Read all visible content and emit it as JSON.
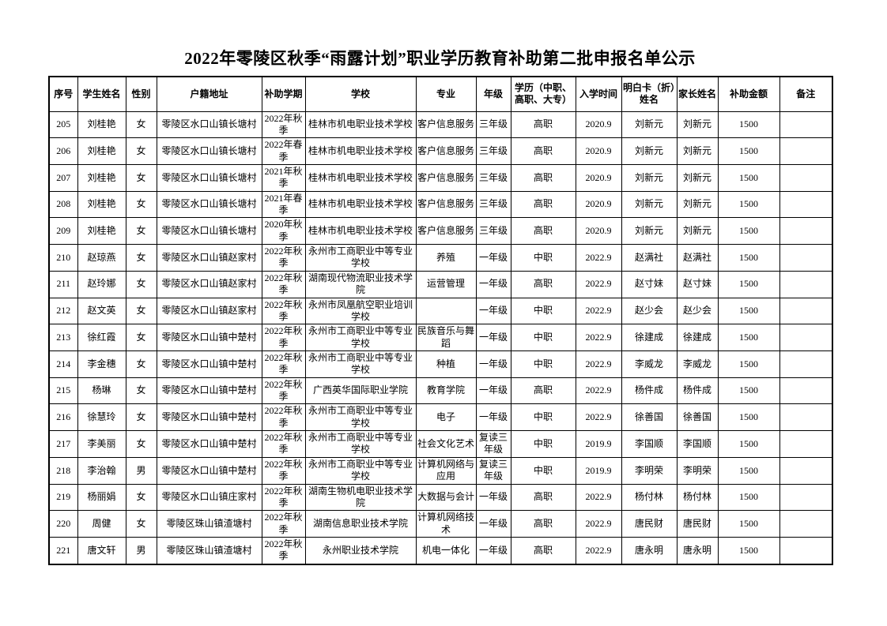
{
  "title": "2022年零陵区秋季“雨露计划”职业学历教育补助第二批申报名单公示",
  "colors": {
    "background": "#ffffff",
    "text": "#000000",
    "border": "#000000"
  },
  "table": {
    "headers": [
      "序号",
      "学生姓名",
      "性别",
      "户籍地址",
      "补助学期",
      "学校",
      "专业",
      "年级",
      "学历（中职、高职、大专）",
      "入学时间",
      "明白卡（折）姓名",
      "家长姓名",
      "补助金额",
      "备注"
    ],
    "rows": [
      [
        "205",
        "刘桂艳",
        "女",
        "零陵区水口山镇长塘村",
        "2022年秋季",
        "桂林市机电职业技术学校",
        "客户信息服务",
        "三年级",
        "高职",
        "2020.9",
        "刘新元",
        "刘新元",
        "1500",
        ""
      ],
      [
        "206",
        "刘桂艳",
        "女",
        "零陵区水口山镇长塘村",
        "2022年春季",
        "桂林市机电职业技术学校",
        "客户信息服务",
        "三年级",
        "高职",
        "2020.9",
        "刘新元",
        "刘新元",
        "1500",
        ""
      ],
      [
        "207",
        "刘桂艳",
        "女",
        "零陵区水口山镇长塘村",
        "2021年秋季",
        "桂林市机电职业技术学校",
        "客户信息服务",
        "三年级",
        "高职",
        "2020.9",
        "刘新元",
        "刘新元",
        "1500",
        ""
      ],
      [
        "208",
        "刘桂艳",
        "女",
        "零陵区水口山镇长塘村",
        "2021年春季",
        "桂林市机电职业技术学校",
        "客户信息服务",
        "三年级",
        "高职",
        "2020.9",
        "刘新元",
        "刘新元",
        "1500",
        ""
      ],
      [
        "209",
        "刘桂艳",
        "女",
        "零陵区水口山镇长塘村",
        "2020年秋季",
        "桂林市机电职业技术学校",
        "客户信息服务",
        "三年级",
        "高职",
        "2020.9",
        "刘新元",
        "刘新元",
        "1500",
        ""
      ],
      [
        "210",
        "赵琼燕",
        "女",
        "零陵区水口山镇赵家村",
        "2022年秋季",
        "永州市工商职业中等专业学校",
        "养殖",
        "一年级",
        "中职",
        "2022.9",
        "赵满社",
        "赵满社",
        "1500",
        ""
      ],
      [
        "211",
        "赵玲娜",
        "女",
        "零陵区水口山镇赵家村",
        "2022年秋季",
        "湖南现代物流职业技术学院",
        "运营管理",
        "一年级",
        "高职",
        "2022.9",
        "赵寸妹",
        "赵寸妹",
        "1500",
        ""
      ],
      [
        "212",
        "赵文英",
        "女",
        "零陵区水口山镇赵家村",
        "2022年秋季",
        "永州市凤凰航空职业培训学校",
        "",
        "一年级",
        "中职",
        "2022.9",
        "赵少会",
        "赵少会",
        "1500",
        ""
      ],
      [
        "213",
        "徐红霞",
        "女",
        "零陵区水口山镇中楚村",
        "2022年秋季",
        "永州市工商职业中等专业学校",
        "民族音乐与舞蹈",
        "一年级",
        "中职",
        "2022.9",
        "徐建成",
        "徐建成",
        "1500",
        ""
      ],
      [
        "214",
        "李金穗",
        "女",
        "零陵区水口山镇中楚村",
        "2022年秋季",
        "永州市工商职业中等专业学校",
        "种植",
        "一年级",
        "中职",
        "2022.9",
        "李威龙",
        "李威龙",
        "1500",
        ""
      ],
      [
        "215",
        "杨琳",
        "女",
        "零陵区水口山镇中楚村",
        "2022年秋季",
        "广西英华国际职业学院",
        "教育学院",
        "一年级",
        "高职",
        "2022.9",
        "杨件成",
        "杨件成",
        "1500",
        ""
      ],
      [
        "216",
        "徐慧玲",
        "女",
        "零陵区水口山镇中楚村",
        "2022年秋季",
        "永州市工商职业中等专业学校",
        "电子",
        "一年级",
        "中职",
        "2022.9",
        "徐善国",
        "徐善国",
        "1500",
        ""
      ],
      [
        "217",
        "李美丽",
        "女",
        "零陵区水口山镇中楚村",
        "2022年秋季",
        "永州市工商职业中等专业学校",
        "社会文化艺术",
        "复读三年级",
        "中职",
        "2019.9",
        "李国顺",
        "李国顺",
        "1500",
        ""
      ],
      [
        "218",
        "李治翰",
        "男",
        "零陵区水口山镇中楚村",
        "2022年秋季",
        "永州市工商职业中等专业学校",
        "计算机网络与应用",
        "复读三年级",
        "中职",
        "2019.9",
        "李明荣",
        "李明荣",
        "1500",
        ""
      ],
      [
        "219",
        "杨丽娟",
        "女",
        "零陵区水口山镇庄家村",
        "2022年秋季",
        "湖南生物机电职业技术学院",
        "大数据与会计",
        "一年级",
        "高职",
        "2022.9",
        "杨付林",
        "杨付林",
        "1500",
        ""
      ],
      [
        "220",
        "周健",
        "女",
        "零陵区珠山镇渣塘村",
        "2022年秋季",
        "湖南信息职业技术学院",
        "计算机网络技术",
        "一年级",
        "高职",
        "2022.9",
        "唐民财",
        "唐民财",
        "1500",
        ""
      ],
      [
        "221",
        "唐文轩",
        "男",
        "零陵区珠山镇渣塘村",
        "2022年秋季",
        "永州职业技术学院",
        "机电一体化",
        "一年级",
        "高职",
        "2022.9",
        "唐永明",
        "唐永明",
        "1500",
        ""
      ]
    ]
  }
}
